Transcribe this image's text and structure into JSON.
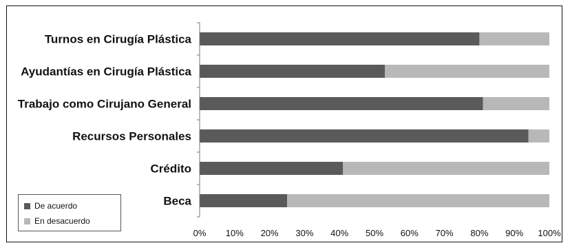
{
  "chart_data": {
    "type": "bar",
    "orientation": "horizontal",
    "stacked": true,
    "categories": [
      "Turnos en Cirugía Plástica",
      "Ayudantías en Cirugía Plástica",
      "Trabajo como Cirujano General",
      "Recursos Personales",
      "Crédito",
      "Beca"
    ],
    "series": [
      {
        "name": "De acuerdo",
        "color": "#5a5a5a",
        "values": [
          80,
          53,
          81,
          94,
          41,
          25
        ]
      },
      {
        "name": "En desacuerdo",
        "color": "#b8b8b8",
        "values": [
          20,
          47,
          19,
          6,
          59,
          75
        ]
      }
    ],
    "xlim": [
      0,
      100
    ],
    "xticks": [
      "0%",
      "10%",
      "20%",
      "30%",
      "40%",
      "50%",
      "60%",
      "70%",
      "80%",
      "90%",
      "100%"
    ],
    "title": "",
    "xlabel": "",
    "ylabel": "",
    "grid": false,
    "legend_position": "bottom-left"
  }
}
